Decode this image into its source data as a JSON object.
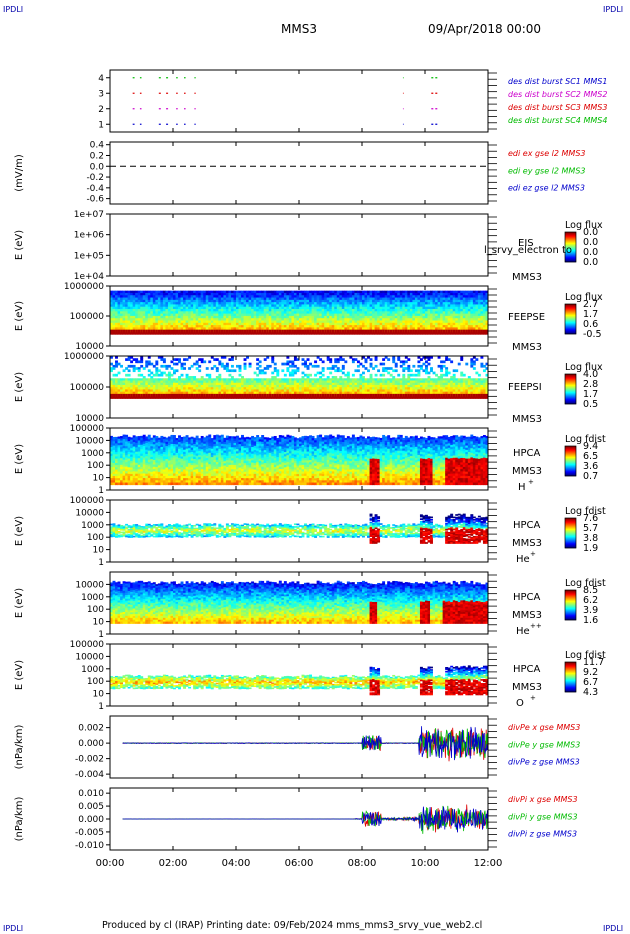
{
  "corner_tl": "IPDLI",
  "corner_tr": "IPDLI",
  "corner_bl": "IPDLI",
  "corner_br": "IPDLI",
  "header": {
    "mission": "MMS3",
    "date": "09/Apr/2018 00:00"
  },
  "footer": "Produced by cl (IRAP)    Printing date: 09/Feb/2024    mms_mms3_srvy_vue_web2.cl",
  "colors": {
    "black": "#000000",
    "red": "#dd0000",
    "green": "#00bb00",
    "blue": "#0000cc",
    "magenta": "#cc00cc"
  },
  "chart_data": [
    {
      "type": "scatter",
      "id": "burst",
      "ylim": [
        0.5,
        4.5
      ],
      "yticks": [
        1,
        2,
        3,
        4
      ],
      "ytick_labels": [
        "1",
        "2",
        "3",
        "4"
      ],
      "legend": [
        {
          "label": "des dist burst SC1 MMS1",
          "color": "#0000cc"
        },
        {
          "label": "des dist burst SC2 MMS2",
          "color": "#cc00cc"
        },
        {
          "label": "des dist burst SC3 MMS3",
          "color": "#dd0000"
        },
        {
          "label": "des dist burst SC4 MMS4",
          "color": "#00bb00"
        }
      ],
      "series": [
        {
          "name": "des dist burst SC1 MMS1",
          "y": 1,
          "color": "#0000cc",
          "intervals": [
            [
              0.72,
              0.78
            ],
            [
              0.95,
              1.0
            ],
            [
              1.55,
              1.65
            ],
            [
              1.78,
              1.85
            ],
            [
              2.1,
              2.15
            ],
            [
              2.35,
              2.4
            ],
            [
              2.68,
              2.72
            ],
            [
              9.3,
              9.32
            ],
            [
              10.2,
              10.45
            ]
          ]
        },
        {
          "name": "des dist burst SC2 MMS2",
          "y": 2,
          "color": "#cc00cc",
          "intervals": [
            [
              0.72,
              0.78
            ],
            [
              0.95,
              1.0
            ],
            [
              1.55,
              1.65
            ],
            [
              1.78,
              1.85
            ],
            [
              2.1,
              2.15
            ],
            [
              2.35,
              2.4
            ],
            [
              2.68,
              2.72
            ],
            [
              9.3,
              9.32
            ],
            [
              10.2,
              10.45
            ]
          ]
        },
        {
          "name": "des dist burst SC3 MMS3",
          "y": 3,
          "color": "#dd0000",
          "intervals": [
            [
              0.72,
              0.78
            ],
            [
              0.95,
              1.0
            ],
            [
              1.55,
              1.65
            ],
            [
              1.78,
              1.85
            ],
            [
              2.1,
              2.15
            ],
            [
              2.35,
              2.4
            ],
            [
              2.68,
              2.72
            ],
            [
              9.3,
              9.32
            ],
            [
              10.2,
              10.45
            ]
          ]
        },
        {
          "name": "des dist burst SC4 MMS4",
          "y": 4,
          "color": "#00bb00",
          "intervals": [
            [
              0.72,
              0.78
            ],
            [
              0.95,
              1.0
            ],
            [
              1.55,
              1.65
            ],
            [
              1.78,
              1.85
            ],
            [
              2.1,
              2.15
            ],
            [
              2.35,
              2.4
            ],
            [
              2.68,
              2.72
            ],
            [
              9.3,
              9.32
            ],
            [
              10.2,
              10.45
            ]
          ]
        }
      ]
    },
    {
      "type": "line",
      "id": "edi",
      "ylabel": "(mV/m)",
      "ylim": [
        -0.7,
        0.45
      ],
      "yticks": [
        0.4,
        0.2,
        0.0,
        -0.2,
        -0.4,
        -0.6
      ],
      "ytick_labels": [
        "0.4",
        "0.2",
        "0.0",
        "-0.2",
        "-0.4",
        "-0.6"
      ],
      "zero_line": true,
      "legend": [
        {
          "label": "edi ex gse l2 MMS3",
          "color": "#dd0000"
        },
        {
          "label": "edi ey gse l2 MMS3",
          "color": "#00bb00"
        },
        {
          "label": "edi ez gse l2 MMS3",
          "color": "#0000cc"
        }
      ]
    },
    {
      "type": "heatmap",
      "id": "eis",
      "ylabel": "E (eV)",
      "ylim": [
        10000,
        10000000
      ],
      "log": true,
      "yticks": [
        10000000,
        1000000,
        100000,
        10000
      ],
      "ytick_labels": [
        "1e+07",
        "1e+06",
        "1e+05",
        "1e+04"
      ],
      "labels": [
        "EIS",
        "MMS3"
      ],
      "overlay_text": "l_srvy_electron to",
      "cbar_title": "Log flux",
      "cbar_ticks": [
        "0.0",
        "0.0",
        "0.0",
        "0.0"
      ],
      "fill": "empty"
    },
    {
      "type": "heatmap",
      "id": "feepse",
      "ylabel": "E (eV)",
      "ylim": [
        10000,
        1000000
      ],
      "log": true,
      "yticks": [
        1000000,
        100000,
        10000
      ],
      "ytick_labels": [
        "1000000",
        "100000",
        "10000"
      ],
      "labels": [
        "FEEPSE",
        "MMS3"
      ],
      "cbar_title": "Log flux",
      "cbar_ticks": [
        "2.7",
        "1.7",
        "0.6",
        "-0.5"
      ],
      "fill": "feepse"
    },
    {
      "type": "heatmap",
      "id": "feepsi",
      "ylabel": "E (eV)",
      "ylim": [
        10000,
        1000000
      ],
      "log": true,
      "yticks": [
        1000000,
        100000,
        10000
      ],
      "ytick_labels": [
        "1000000",
        "100000",
        "10000"
      ],
      "labels": [
        "FEEPSI",
        "MMS3"
      ],
      "cbar_title": "Log flux",
      "cbar_ticks": [
        "4.0",
        "2.8",
        "1.7",
        "0.5"
      ],
      "fill": "feepsi"
    },
    {
      "type": "heatmap",
      "id": "hpca_h",
      "ylabel": "E (eV)",
      "ylim": [
        1,
        100000
      ],
      "log": true,
      "yticks": [
        100000,
        10000,
        1000,
        100,
        10,
        1
      ],
      "ytick_labels": [
        "100000",
        "10000",
        "1000",
        "100",
        "10",
        "1"
      ],
      "labels": [
        "HPCA",
        "MMS3",
        "H",
        "+"
      ],
      "cbar_title": "Log fdist",
      "cbar_ticks": [
        "9.4",
        "6.5",
        "3.6",
        "0.7"
      ],
      "fill": "hpca_h"
    },
    {
      "type": "heatmap",
      "id": "hpca_he",
      "ylabel": "E (eV)",
      "ylim": [
        1,
        100000
      ],
      "log": true,
      "yticks": [
        100000,
        10000,
        1000,
        100,
        10,
        1
      ],
      "ytick_labels": [
        "100000",
        "10000",
        "1000",
        "100",
        "10",
        "1"
      ],
      "labels": [
        "HPCA",
        "MMS3",
        "He",
        "+"
      ],
      "cbar_title": "Log fdist",
      "cbar_ticks": [
        "7.6",
        "5.7",
        "3.8",
        "1.9"
      ],
      "fill": "hpca_he"
    },
    {
      "type": "heatmap",
      "id": "hpca_he2",
      "ylabel": "E (eV)",
      "ylim": [
        1,
        100000
      ],
      "log": true,
      "yticks": [
        10000,
        1000,
        100,
        10,
        1
      ],
      "ytick_labels": [
        "10000",
        "1000",
        "100",
        "10",
        "1"
      ],
      "labels": [
        "HPCA",
        "MMS3",
        "He",
        "++"
      ],
      "cbar_title": "Log fdist",
      "cbar_ticks": [
        "8.5",
        "6.2",
        "3.9",
        "1.6"
      ],
      "fill": "hpca_he2"
    },
    {
      "type": "heatmap",
      "id": "hpca_o",
      "ylabel": "E (eV)",
      "ylim": [
        1,
        100000
      ],
      "log": true,
      "yticks": [
        100000,
        10000,
        1000,
        100,
        10,
        1
      ],
      "ytick_labels": [
        "100000",
        "10000",
        "1000",
        "100",
        "10",
        "1"
      ],
      "labels": [
        "HPCA",
        "MMS3",
        "O",
        "+"
      ],
      "cbar_title": "Log fdist",
      "cbar_ticks": [
        "11.7",
        "9.2",
        "6.7",
        "4.3"
      ],
      "fill": "hpca_o"
    },
    {
      "type": "line",
      "id": "divpe",
      "ylabel": "(nPa/km)",
      "ylim": [
        -0.0045,
        0.0035
      ],
      "yticks": [
        0.002,
        0.0,
        -0.002,
        -0.004
      ],
      "ytick_labels": [
        "0.002",
        "0.000",
        "-0.002",
        "-0.004"
      ],
      "legend": [
        {
          "label": "divPe x gse MMS3",
          "color": "#dd0000"
        },
        {
          "label": "divPe y gse MMS3",
          "color": "#00bb00"
        },
        {
          "label": "divPe z gse MMS3",
          "color": "#0000cc"
        }
      ],
      "noise": "pe"
    },
    {
      "type": "line",
      "id": "divpi",
      "ylabel": "(nPa/km)",
      "ylim": [
        -0.012,
        0.012
      ],
      "yticks": [
        0.01,
        0.005,
        0.0,
        -0.005,
        -0.01
      ],
      "ytick_labels": [
        "0.010",
        "0.005",
        "0.000",
        "-0.005",
        "-0.010"
      ],
      "legend": [
        {
          "label": "divPi x gse MMS3",
          "color": "#dd0000"
        },
        {
          "label": "divPi y gse MMS3",
          "color": "#00bb00"
        },
        {
          "label": "divPi z gse MMS3",
          "color": "#0000cc"
        }
      ],
      "noise": "pi"
    }
  ],
  "time_axis": {
    "xlim": [
      0,
      12
    ],
    "ticks": [
      0,
      2,
      4,
      6,
      8,
      10,
      12
    ],
    "tick_labels": [
      "00:00",
      "02:00",
      "04:00",
      "06:00",
      "08:00",
      "10:00",
      "12:00"
    ]
  }
}
